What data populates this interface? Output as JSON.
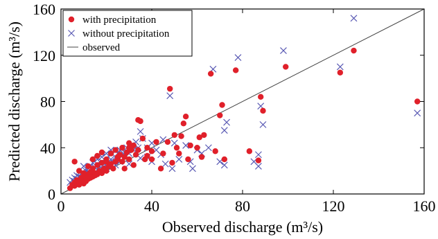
{
  "chart_data": {
    "type": "scatter",
    "xlabel": "Observed discharge (m³/s)",
    "ylabel": "Predicted discharge (m³/s)",
    "xlim": [
      0,
      160
    ],
    "ylim": [
      0,
      160
    ],
    "xticks": [
      0,
      40,
      80,
      120,
      160
    ],
    "yticks": [
      0,
      40,
      80,
      120,
      160
    ],
    "grid": false,
    "legend_position": "top-left",
    "series": [
      {
        "name": "with precipitation",
        "marker": "filled-circle",
        "color": "#e0202a",
        "points": [
          [
            4,
            5
          ],
          [
            5,
            8
          ],
          [
            6,
            7
          ],
          [
            6,
            10
          ],
          [
            7,
            9
          ],
          [
            7,
            12
          ],
          [
            8,
            8
          ],
          [
            8,
            11
          ],
          [
            9,
            10
          ],
          [
            9,
            14
          ],
          [
            10,
            9
          ],
          [
            10,
            12
          ],
          [
            11,
            11
          ],
          [
            11,
            15
          ],
          [
            12,
            13
          ],
          [
            12,
            17
          ],
          [
            13,
            14
          ],
          [
            13,
            19
          ],
          [
            14,
            15
          ],
          [
            14,
            22
          ],
          [
            15,
            16
          ],
          [
            15,
            18
          ],
          [
            16,
            17
          ],
          [
            16,
            25
          ],
          [
            17,
            20
          ],
          [
            18,
            18
          ],
          [
            18,
            27
          ],
          [
            19,
            22
          ],
          [
            20,
            20
          ],
          [
            20,
            30
          ],
          [
            21,
            24
          ],
          [
            22,
            26
          ],
          [
            22,
            35
          ],
          [
            23,
            22
          ],
          [
            24,
            28
          ],
          [
            24,
            38
          ],
          [
            25,
            30
          ],
          [
            26,
            34
          ],
          [
            27,
            28
          ],
          [
            27,
            40
          ],
          [
            28,
            32
          ],
          [
            29,
            36
          ],
          [
            30,
            30
          ],
          [
            30,
            44
          ],
          [
            31,
            38
          ],
          [
            32,
            42
          ],
          [
            33,
            34
          ],
          [
            34,
            38
          ],
          [
            34,
            64
          ],
          [
            35,
            63
          ],
          [
            36,
            48
          ],
          [
            37,
            30
          ],
          [
            38,
            40
          ],
          [
            40,
            30
          ],
          [
            40,
            37
          ],
          [
            42,
            45
          ],
          [
            45,
            35
          ],
          [
            47,
            45
          ],
          [
            48,
            91
          ],
          [
            49,
            27
          ],
          [
            50,
            51
          ],
          [
            51,
            40
          ],
          [
            52,
            35
          ],
          [
            53,
            50
          ],
          [
            54,
            61
          ],
          [
            55,
            67
          ],
          [
            56,
            30
          ],
          [
            57,
            42
          ],
          [
            60,
            40
          ],
          [
            61,
            49
          ],
          [
            63,
            51
          ],
          [
            66,
            104
          ],
          [
            68,
            37
          ],
          [
            70,
            68
          ],
          [
            71,
            77
          ],
          [
            72,
            30
          ],
          [
            77,
            107
          ],
          [
            83,
            37
          ],
          [
            87,
            29
          ],
          [
            88,
            84
          ],
          [
            89,
            72
          ],
          [
            99,
            110
          ],
          [
            123,
            105
          ],
          [
            129,
            124
          ],
          [
            157,
            80
          ],
          [
            6,
            28
          ],
          [
            8,
            20
          ],
          [
            10,
            18
          ],
          [
            12,
            24
          ],
          [
            14,
            30
          ],
          [
            16,
            33
          ],
          [
            18,
            36
          ],
          [
            20,
            28
          ],
          [
            25,
            32
          ],
          [
            28,
            22
          ],
          [
            30,
            40
          ],
          [
            32,
            25
          ],
          [
            38,
            33
          ],
          [
            44,
            22
          ],
          [
            62,
            32
          ]
        ]
      },
      {
        "name": "without precipitation",
        "marker": "x",
        "color": "#5a5ab4",
        "points": [
          [
            4,
            10
          ],
          [
            5,
            12
          ],
          [
            6,
            11
          ],
          [
            6,
            14
          ],
          [
            7,
            13
          ],
          [
            7,
            16
          ],
          [
            8,
            12
          ],
          [
            8,
            15
          ],
          [
            9,
            14
          ],
          [
            9,
            18
          ],
          [
            10,
            13
          ],
          [
            10,
            17
          ],
          [
            11,
            15
          ],
          [
            11,
            20
          ],
          [
            12,
            16
          ],
          [
            12,
            22
          ],
          [
            13,
            18
          ],
          [
            13,
            24
          ],
          [
            14,
            17
          ],
          [
            14,
            27
          ],
          [
            15,
            19
          ],
          [
            15,
            23
          ],
          [
            16,
            21
          ],
          [
            16,
            30
          ],
          [
            17,
            24
          ],
          [
            18,
            22
          ],
          [
            18,
            32
          ],
          [
            19,
            26
          ],
          [
            20,
            24
          ],
          [
            20,
            35
          ],
          [
            21,
            28
          ],
          [
            22,
            30
          ],
          [
            22,
            38
          ],
          [
            23,
            27
          ],
          [
            24,
            32
          ],
          [
            25,
            35
          ],
          [
            26,
            38
          ],
          [
            27,
            33
          ],
          [
            28,
            36
          ],
          [
            29,
            40
          ],
          [
            30,
            35
          ],
          [
            31,
            42
          ],
          [
            32,
            38
          ],
          [
            33,
            45
          ],
          [
            34,
            40
          ],
          [
            35,
            54
          ],
          [
            36,
            48
          ],
          [
            38,
            40
          ],
          [
            40,
            44
          ],
          [
            42,
            38
          ],
          [
            44,
            34
          ],
          [
            46,
            26
          ],
          [
            48,
            85
          ],
          [
            49,
            22
          ],
          [
            50,
            44
          ],
          [
            52,
            30
          ],
          [
            55,
            42
          ],
          [
            57,
            28
          ],
          [
            58,
            22
          ],
          [
            62,
            35
          ],
          [
            65,
            40
          ],
          [
            67,
            108
          ],
          [
            70,
            28
          ],
          [
            72,
            25
          ],
          [
            72,
            55
          ],
          [
            73,
            62
          ],
          [
            78,
            118
          ],
          [
            85,
            28
          ],
          [
            87,
            24
          ],
          [
            87,
            34
          ],
          [
            88,
            76
          ],
          [
            89,
            60
          ],
          [
            98,
            124
          ],
          [
            123,
            110
          ],
          [
            129,
            152
          ],
          [
            157,
            70
          ],
          [
            10,
            24
          ],
          [
            12,
            19
          ],
          [
            14,
            20
          ],
          [
            16,
            26
          ],
          [
            18,
            28
          ],
          [
            20,
            22
          ],
          [
            24,
            25
          ],
          [
            26,
            28
          ],
          [
            30,
            26
          ],
          [
            35,
            31
          ],
          [
            38,
            32
          ],
          [
            40,
            28
          ],
          [
            45,
            47
          ],
          [
            60,
            38
          ]
        ]
      },
      {
        "name": "observed",
        "marker": "line",
        "color": "#444444",
        "points": [
          [
            0,
            0
          ],
          [
            160,
            160
          ]
        ]
      }
    ]
  }
}
